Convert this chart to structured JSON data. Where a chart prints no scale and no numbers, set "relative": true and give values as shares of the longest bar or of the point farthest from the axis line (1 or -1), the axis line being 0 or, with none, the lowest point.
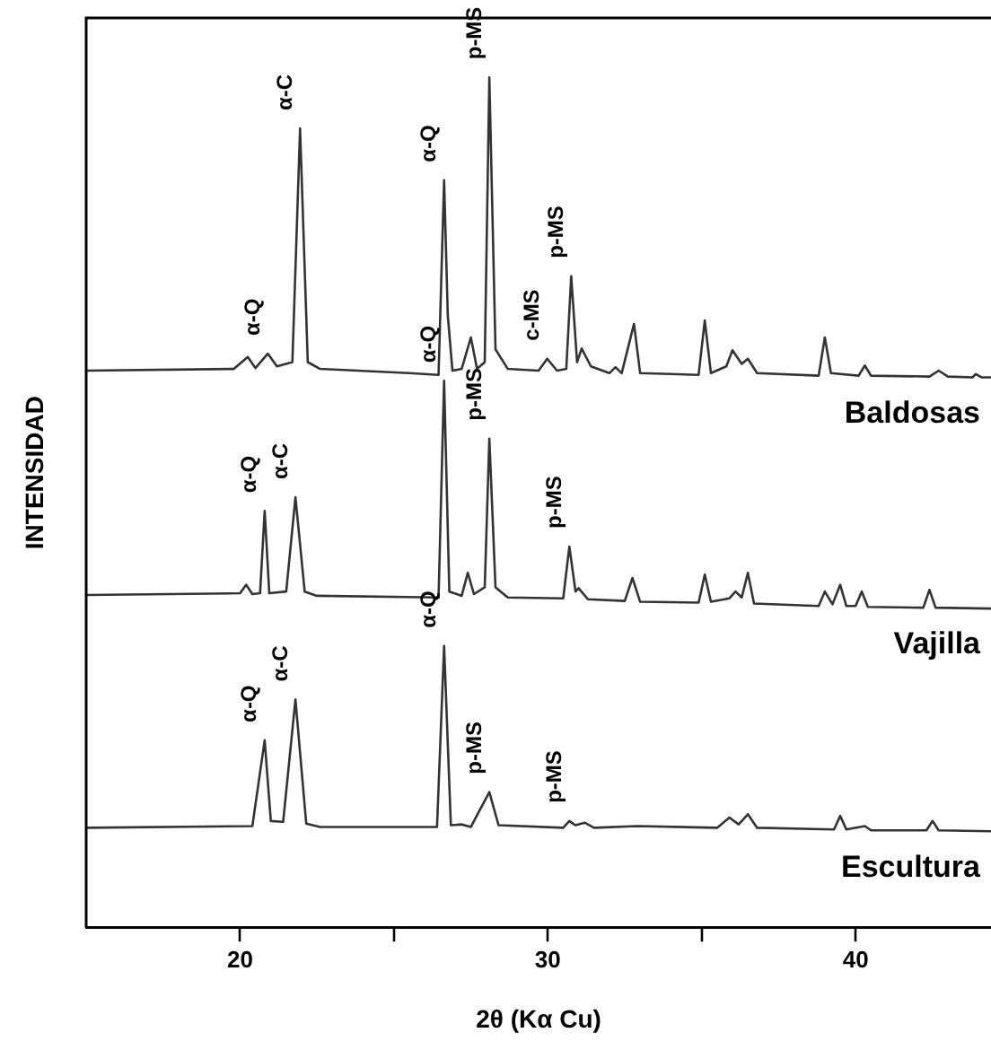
{
  "chart_data": {
    "type": "line",
    "relative": true,
    "xlabel": "2θ (Kα Cu)",
    "ylabel": "INTENSIDAD",
    "xlim": [
      15,
      44.4
    ],
    "xticks": [
      20,
      {
        "value": 25,
        "label": null
      },
      30,
      {
        "value": 35,
        "label": null
      },
      40
    ],
    "grid": false,
    "legend": false,
    "marker": "none",
    "line_style": "solid",
    "series": [
      {
        "name": "Baldosas",
        "color": "#333333",
        "x": [
          15,
          19.8,
          20.25,
          20.5,
          20.9,
          21.2,
          21.7,
          21.95,
          22.2,
          22.6,
          25.5,
          26.45,
          26.63,
          26.75,
          26.9,
          27.2,
          27.5,
          27.7,
          27.95,
          28.1,
          28.3,
          28.7,
          29.7,
          29.98,
          30.3,
          30.6,
          30.76,
          30.95,
          31.1,
          31.4,
          32.0,
          32.2,
          32.4,
          32.8,
          33.0,
          34.9,
          35.1,
          35.3,
          35.8,
          36.0,
          36.3,
          36.5,
          36.8,
          38.8,
          39.0,
          39.2,
          40.1,
          40.3,
          40.5,
          42.4,
          42.7,
          43.0,
          43.8,
          43.9,
          44.1,
          44.4
        ],
        "values": [
          0.655,
          0.657,
          0.671,
          0.658,
          0.675,
          0.66,
          0.665,
          0.94,
          0.665,
          0.657,
          0.652,
          0.65,
          0.879,
          0.72,
          0.655,
          0.657,
          0.694,
          0.657,
          0.665,
          1.0,
          0.68,
          0.657,
          0.655,
          0.669,
          0.655,
          0.657,
          0.766,
          0.665,
          0.681,
          0.66,
          0.652,
          0.659,
          0.652,
          0.71,
          0.652,
          0.65,
          0.714,
          0.652,
          0.66,
          0.679,
          0.663,
          0.669,
          0.652,
          0.649,
          0.694,
          0.652,
          0.649,
          0.661,
          0.649,
          0.648,
          0.655,
          0.648,
          0.647,
          0.651,
          0.647,
          0.647
        ]
      },
      {
        "name": "Vajilla",
        "color": "#333333",
        "x": [
          15,
          20.0,
          20.2,
          20.4,
          20.65,
          20.8,
          20.95,
          21.5,
          21.8,
          22.1,
          22.5,
          26.45,
          26.63,
          26.8,
          27.2,
          27.4,
          27.6,
          27.95,
          28.1,
          28.3,
          28.7,
          30.5,
          30.7,
          30.9,
          31.0,
          31.3,
          32.5,
          32.75,
          33.0,
          34.9,
          35.1,
          35.3,
          35.9,
          36.1,
          36.3,
          36.5,
          36.7,
          38.8,
          39.0,
          39.25,
          39.5,
          39.7,
          40.0,
          40.2,
          40.4,
          42.2,
          42.4,
          42.6,
          44.4
        ],
        "values": [
          0.391,
          0.393,
          0.403,
          0.392,
          0.393,
          0.49,
          0.393,
          0.395,
          0.506,
          0.395,
          0.39,
          0.388,
          0.643,
          0.395,
          0.39,
          0.417,
          0.392,
          0.4,
          0.575,
          0.4,
          0.388,
          0.387,
          0.448,
          0.395,
          0.399,
          0.386,
          0.384,
          0.411,
          0.383,
          0.382,
          0.415,
          0.383,
          0.387,
          0.395,
          0.388,
          0.417,
          0.381,
          0.378,
          0.395,
          0.38,
          0.403,
          0.378,
          0.378,
          0.395,
          0.377,
          0.376,
          0.397,
          0.376,
          0.375
        ]
      },
      {
        "name": "Escultura",
        "color": "#333333",
        "x": [
          15,
          20.4,
          20.8,
          21.0,
          21.4,
          21.8,
          22.15,
          22.6,
          26.4,
          26.63,
          26.85,
          27.2,
          27.5,
          28.1,
          28.4,
          30.5,
          30.7,
          30.9,
          31.2,
          31.5,
          32.9,
          35.5,
          35.9,
          36.2,
          36.5,
          36.8,
          39.3,
          39.5,
          39.7,
          40.3,
          40.5,
          42.3,
          42.5,
          42.7,
          44.4
        ],
        "values": [
          0.117,
          0.119,
          0.22,
          0.125,
          0.124,
          0.268,
          0.122,
          0.118,
          0.118,
          0.331,
          0.12,
          0.121,
          0.118,
          0.159,
          0.12,
          0.117,
          0.125,
          0.12,
          0.123,
          0.117,
          0.119,
          0.117,
          0.129,
          0.121,
          0.133,
          0.117,
          0.115,
          0.131,
          0.115,
          0.119,
          0.114,
          0.114,
          0.125,
          0.114,
          0.113
        ]
      }
    ],
    "annotations": [
      {
        "text": "α-Q",
        "x": 20.9,
        "y": 0.675
      },
      {
        "text": "α-C",
        "x": 21.95,
        "y": 0.94
      },
      {
        "text": "α-Q",
        "x": 26.63,
        "y": 0.879
      },
      {
        "text": "p-MS",
        "x": 28.1,
        "y": 1.0
      },
      {
        "text": "c-MS",
        "x": 29.98,
        "y": 0.669
      },
      {
        "text": "p-MS",
        "x": 30.76,
        "y": 0.766
      },
      {
        "text": "α-Q",
        "x": 20.8,
        "y": 0.49
      },
      {
        "text": "α-C",
        "x": 21.8,
        "y": 0.506
      },
      {
        "text": "α-Q",
        "x": 26.63,
        "y": 0.643
      },
      {
        "text": "p-MS",
        "x": 28.1,
        "y": 0.575
      },
      {
        "text": "p-MS",
        "x": 30.7,
        "y": 0.448
      },
      {
        "text": "α-Q",
        "x": 20.8,
        "y": 0.22
      },
      {
        "text": "α-C",
        "x": 21.8,
        "y": 0.268
      },
      {
        "text": "α-Q",
        "x": 26.63,
        "y": 0.331
      },
      {
        "text": "p-MS",
        "x": 28.1,
        "y": 0.159
      },
      {
        "text": "p-MS",
        "x": 30.7,
        "y": 0.125
      }
    ]
  }
}
